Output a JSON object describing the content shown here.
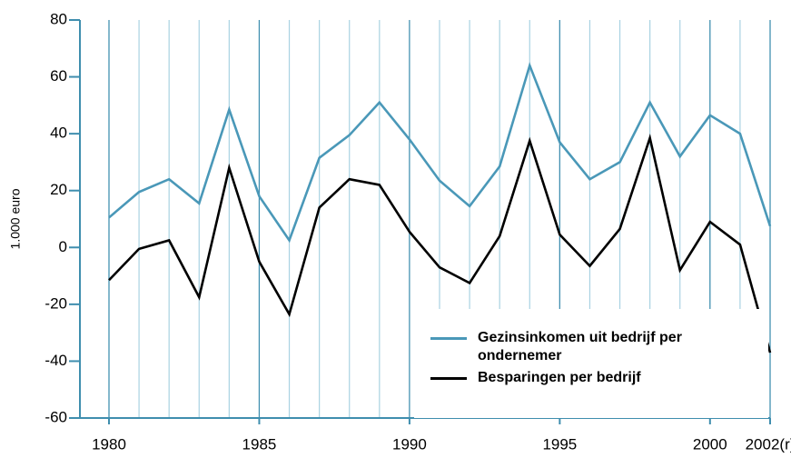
{
  "chart_data": {
    "type": "line",
    "ylabel": "1.000 euro",
    "x": [
      1980,
      1981,
      1982,
      1983,
      1984,
      1985,
      1986,
      1987,
      1988,
      1989,
      1990,
      1991,
      1992,
      1993,
      1994,
      1995,
      1996,
      1997,
      1998,
      1999,
      2000,
      2001,
      2002
    ],
    "series": [
      {
        "name": "Gezinsinkomen uit bedrijf per ondernemer",
        "color": "#4a98b8",
        "values": [
          10.5,
          19.5,
          24,
          15.5,
          48.5,
          18,
          2.5,
          31.5,
          39.5,
          51,
          38,
          23.5,
          14.5,
          28.5,
          64,
          37,
          24,
          30,
          51,
          32,
          46.5,
          40,
          7.5
        ]
      },
      {
        "name": "Besparingen per bedrijf",
        "color": "#000000",
        "values": [
          -11.5,
          -0.5,
          2.5,
          -17.5,
          28,
          -5,
          -23.5,
          14,
          24,
          22,
          5.5,
          -7,
          -12.5,
          4,
          37.5,
          4.5,
          -6.5,
          6.5,
          38.5,
          -8,
          9,
          1,
          -37
        ]
      }
    ],
    "xlim": [
      1980,
      2002
    ],
    "xticks": [
      1980,
      1985,
      1990,
      1995,
      2000,
      {
        "value": 2002,
        "label": "2002(r)"
      }
    ],
    "ylim": [
      -60,
      80
    ],
    "yticks": [
      -60,
      -40,
      -20,
      0,
      20,
      40,
      60,
      80
    ],
    "grid": "x",
    "grid_color": "#a9d2e2",
    "major_grid_color": "#3f8eae",
    "axis_color": "#3f8eae"
  }
}
